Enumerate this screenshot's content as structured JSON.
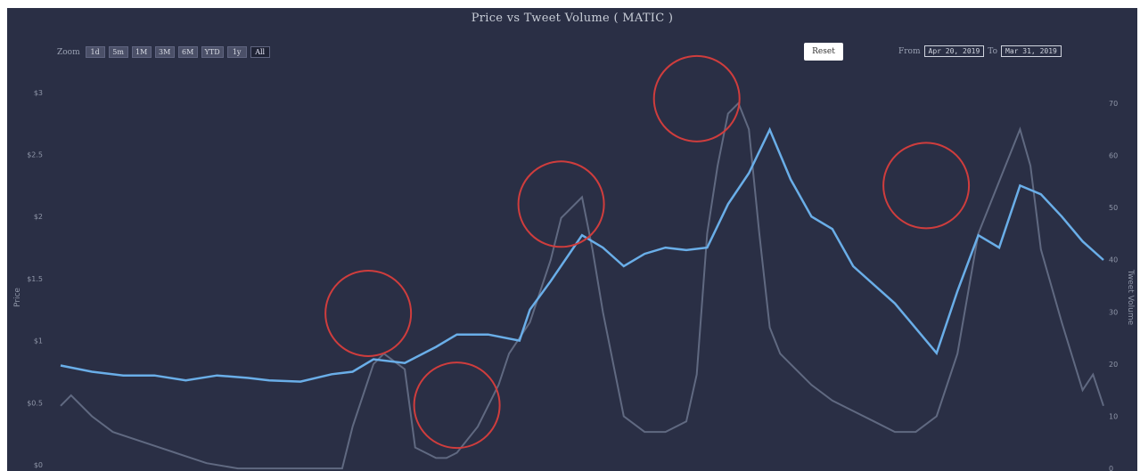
{
  "title": "Price vs Tweet Volume ( MATIC )",
  "zoom": {
    "label": "Zoom",
    "buttons": [
      "1d",
      "5m",
      "1M",
      "3M",
      "6M",
      "YTD",
      "1y",
      "All"
    ],
    "active": "All"
  },
  "reset_label": "Reset",
  "range": {
    "from_label": "From",
    "from_value": "Apr 20, 2019",
    "to_label": "To",
    "to_value": "Mar 31, 2019"
  },
  "colors": {
    "background": "#2a2f45",
    "price_line": "#6aaee8",
    "volume_line": "#6e7890",
    "highlight": "#cf3d3d"
  },
  "chart_data": {
    "type": "line",
    "title": "Price vs Tweet Volume ( MATIC )",
    "ylabel": "Price",
    "y2label": "Tweet Volume",
    "legend": "none",
    "grid": false,
    "x_ticks": [],
    "y_ticks": [
      "$0",
      "$0.5",
      "$1",
      "$1.5",
      "$2",
      "$2.5",
      "$3"
    ],
    "y_tick_values": [
      0,
      0.5,
      1,
      1.5,
      2,
      2.5,
      3
    ],
    "ylim": [
      -0.05,
      3.25
    ],
    "y2_ticks": [
      "0",
      "10",
      "20",
      "30",
      "40",
      "50",
      "60",
      "70"
    ],
    "y2_tick_values": [
      0,
      10,
      20,
      30,
      40,
      50,
      60,
      70
    ],
    "y2lim": [
      -0.5,
      78
    ],
    "series": [
      {
        "key": "price",
        "axis": "left",
        "x": [
          0,
          3,
          6,
          9,
          12,
          15,
          18,
          20,
          23,
          26,
          28,
          30,
          33,
          36,
          38,
          41,
          44,
          45,
          47,
          50,
          52,
          54,
          56,
          58,
          60,
          62,
          64,
          66,
          68,
          70,
          72,
          74,
          76,
          78,
          80,
          82,
          84,
          86,
          88,
          90,
          92,
          94,
          96,
          98,
          100
        ],
        "values": [
          0.8,
          0.75,
          0.72,
          0.72,
          0.68,
          0.72,
          0.7,
          0.68,
          0.67,
          0.73,
          0.75,
          0.85,
          0.82,
          0.95,
          1.05,
          1.05,
          1.0,
          1.25,
          1.48,
          1.85,
          1.75,
          1.6,
          1.7,
          1.75,
          1.73,
          1.75,
          2.1,
          2.35,
          2.7,
          2.3,
          2.0,
          1.9,
          1.6,
          1.45,
          1.3,
          1.1,
          0.9,
          1.4,
          1.85,
          1.75,
          2.25,
          2.18,
          2.0,
          1.8,
          1.65
        ]
      },
      {
        "key": "tweet_volume",
        "axis": "right",
        "x": [
          0,
          1,
          3,
          5,
          8,
          11,
          14,
          17,
          20,
          23,
          25,
          27,
          28,
          30,
          31,
          33,
          34,
          36,
          37,
          38,
          40,
          42,
          43,
          45,
          47,
          48,
          50,
          51,
          52,
          54,
          56,
          58,
          60,
          61,
          62,
          63,
          64,
          65,
          66,
          67,
          68,
          69,
          70,
          72,
          74,
          76,
          78,
          80,
          82,
          84,
          86,
          88,
          90,
          91,
          92,
          93,
          94,
          96,
          98,
          99,
          100
        ],
        "values": [
          12,
          14,
          10,
          7,
          5,
          3,
          1,
          0,
          0,
          0,
          0,
          0,
          8,
          20,
          22,
          19,
          4,
          2,
          2,
          3,
          8,
          16,
          22,
          28,
          40,
          48,
          52,
          42,
          30,
          10,
          7,
          7,
          9,
          18,
          45,
          58,
          68,
          70,
          65,
          45,
          27,
          22,
          20,
          16,
          13,
          11,
          9,
          7,
          7,
          10,
          22,
          45,
          55,
          60,
          65,
          58,
          42,
          28,
          15,
          18,
          12
        ]
      }
    ],
    "annotations": [
      {
        "type": "circle",
        "x": 29.5,
        "y": 1.22
      },
      {
        "type": "circle",
        "x": 38.0,
        "y": 0.48
      },
      {
        "type": "circle",
        "x": 48.0,
        "y": 2.1
      },
      {
        "type": "circle",
        "x": 61.0,
        "y": 2.95
      },
      {
        "type": "circle",
        "x": 83.0,
        "y": 2.25
      }
    ]
  }
}
